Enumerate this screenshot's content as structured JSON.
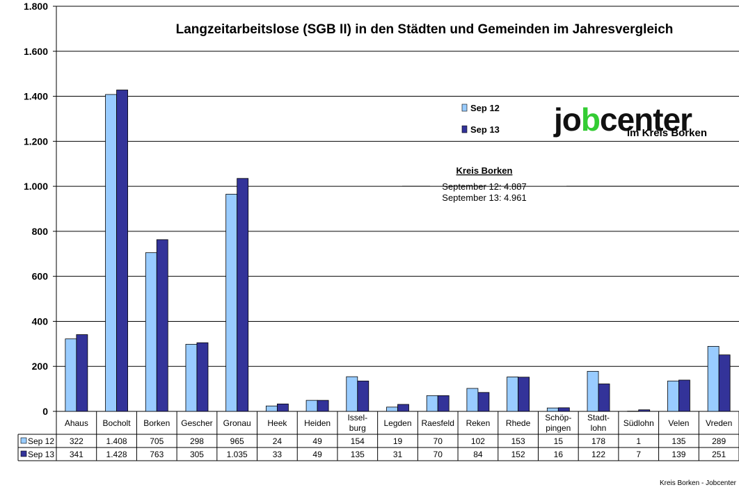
{
  "chart_data": {
    "type": "bar",
    "title": "Langzeitarbeitslose (SGB II) in den Städten und Gemeinden im Jahresvergleich",
    "categories": [
      [
        "Ahaus"
      ],
      [
        "Bocholt"
      ],
      [
        "Borken"
      ],
      [
        "Gescher"
      ],
      [
        "Gronau"
      ],
      [
        "Heek"
      ],
      [
        "Heiden"
      ],
      [
        "Issel-",
        "burg"
      ],
      [
        "Legden"
      ],
      [
        "Raesfeld"
      ],
      [
        "Reken"
      ],
      [
        "Rhede"
      ],
      [
        "Schöp-",
        "pingen"
      ],
      [
        "Stadt-",
        "lohn"
      ],
      [
        "Südlohn"
      ],
      [
        "Velen"
      ],
      [
        "Vreden"
      ]
    ],
    "series": [
      {
        "name": "Sep 12",
        "color": "#99ccff",
        "values": [
          322,
          1408,
          705,
          298,
          965,
          24,
          49,
          154,
          19,
          70,
          102,
          153,
          15,
          178,
          1,
          135,
          289
        ],
        "labels": [
          "322",
          "1.408",
          "705",
          "298",
          "965",
          "24",
          "49",
          "154",
          "19",
          "70",
          "102",
          "153",
          "15",
          "178",
          "1",
          "135",
          "289"
        ]
      },
      {
        "name": "Sep 13",
        "color": "#333399",
        "values": [
          341,
          1428,
          763,
          305,
          1035,
          33,
          49,
          135,
          31,
          70,
          84,
          152,
          16,
          122,
          7,
          139,
          251
        ],
        "labels": [
          "341",
          "1.428",
          "763",
          "305",
          "1.035",
          "33",
          "49",
          "135",
          "31",
          "70",
          "84",
          "152",
          "16",
          "122",
          "7",
          "139",
          "251"
        ]
      }
    ],
    "ylim": [
      0,
      1800
    ],
    "yticks": [
      0,
      200,
      400,
      600,
      800,
      1000,
      1200,
      1400,
      1600,
      1800
    ],
    "ytick_labels": [
      "0",
      "200",
      "400",
      "600",
      "800",
      "1.000",
      "1.200",
      "1.400",
      "1.600",
      "1.800"
    ],
    "grid": true,
    "legend_placement": "top-right",
    "data_table": true
  },
  "annotation": {
    "heading": "Kreis Borken",
    "lines": [
      "September 12: 4.887",
      "September 13: 4.961"
    ]
  },
  "logo": {
    "text": "jobcenter",
    "subtext": "im Kreis Borken",
    "color_main": "#111111",
    "color_accent": "#33cc33"
  },
  "footer": "Kreis Borken - Jobcenter"
}
